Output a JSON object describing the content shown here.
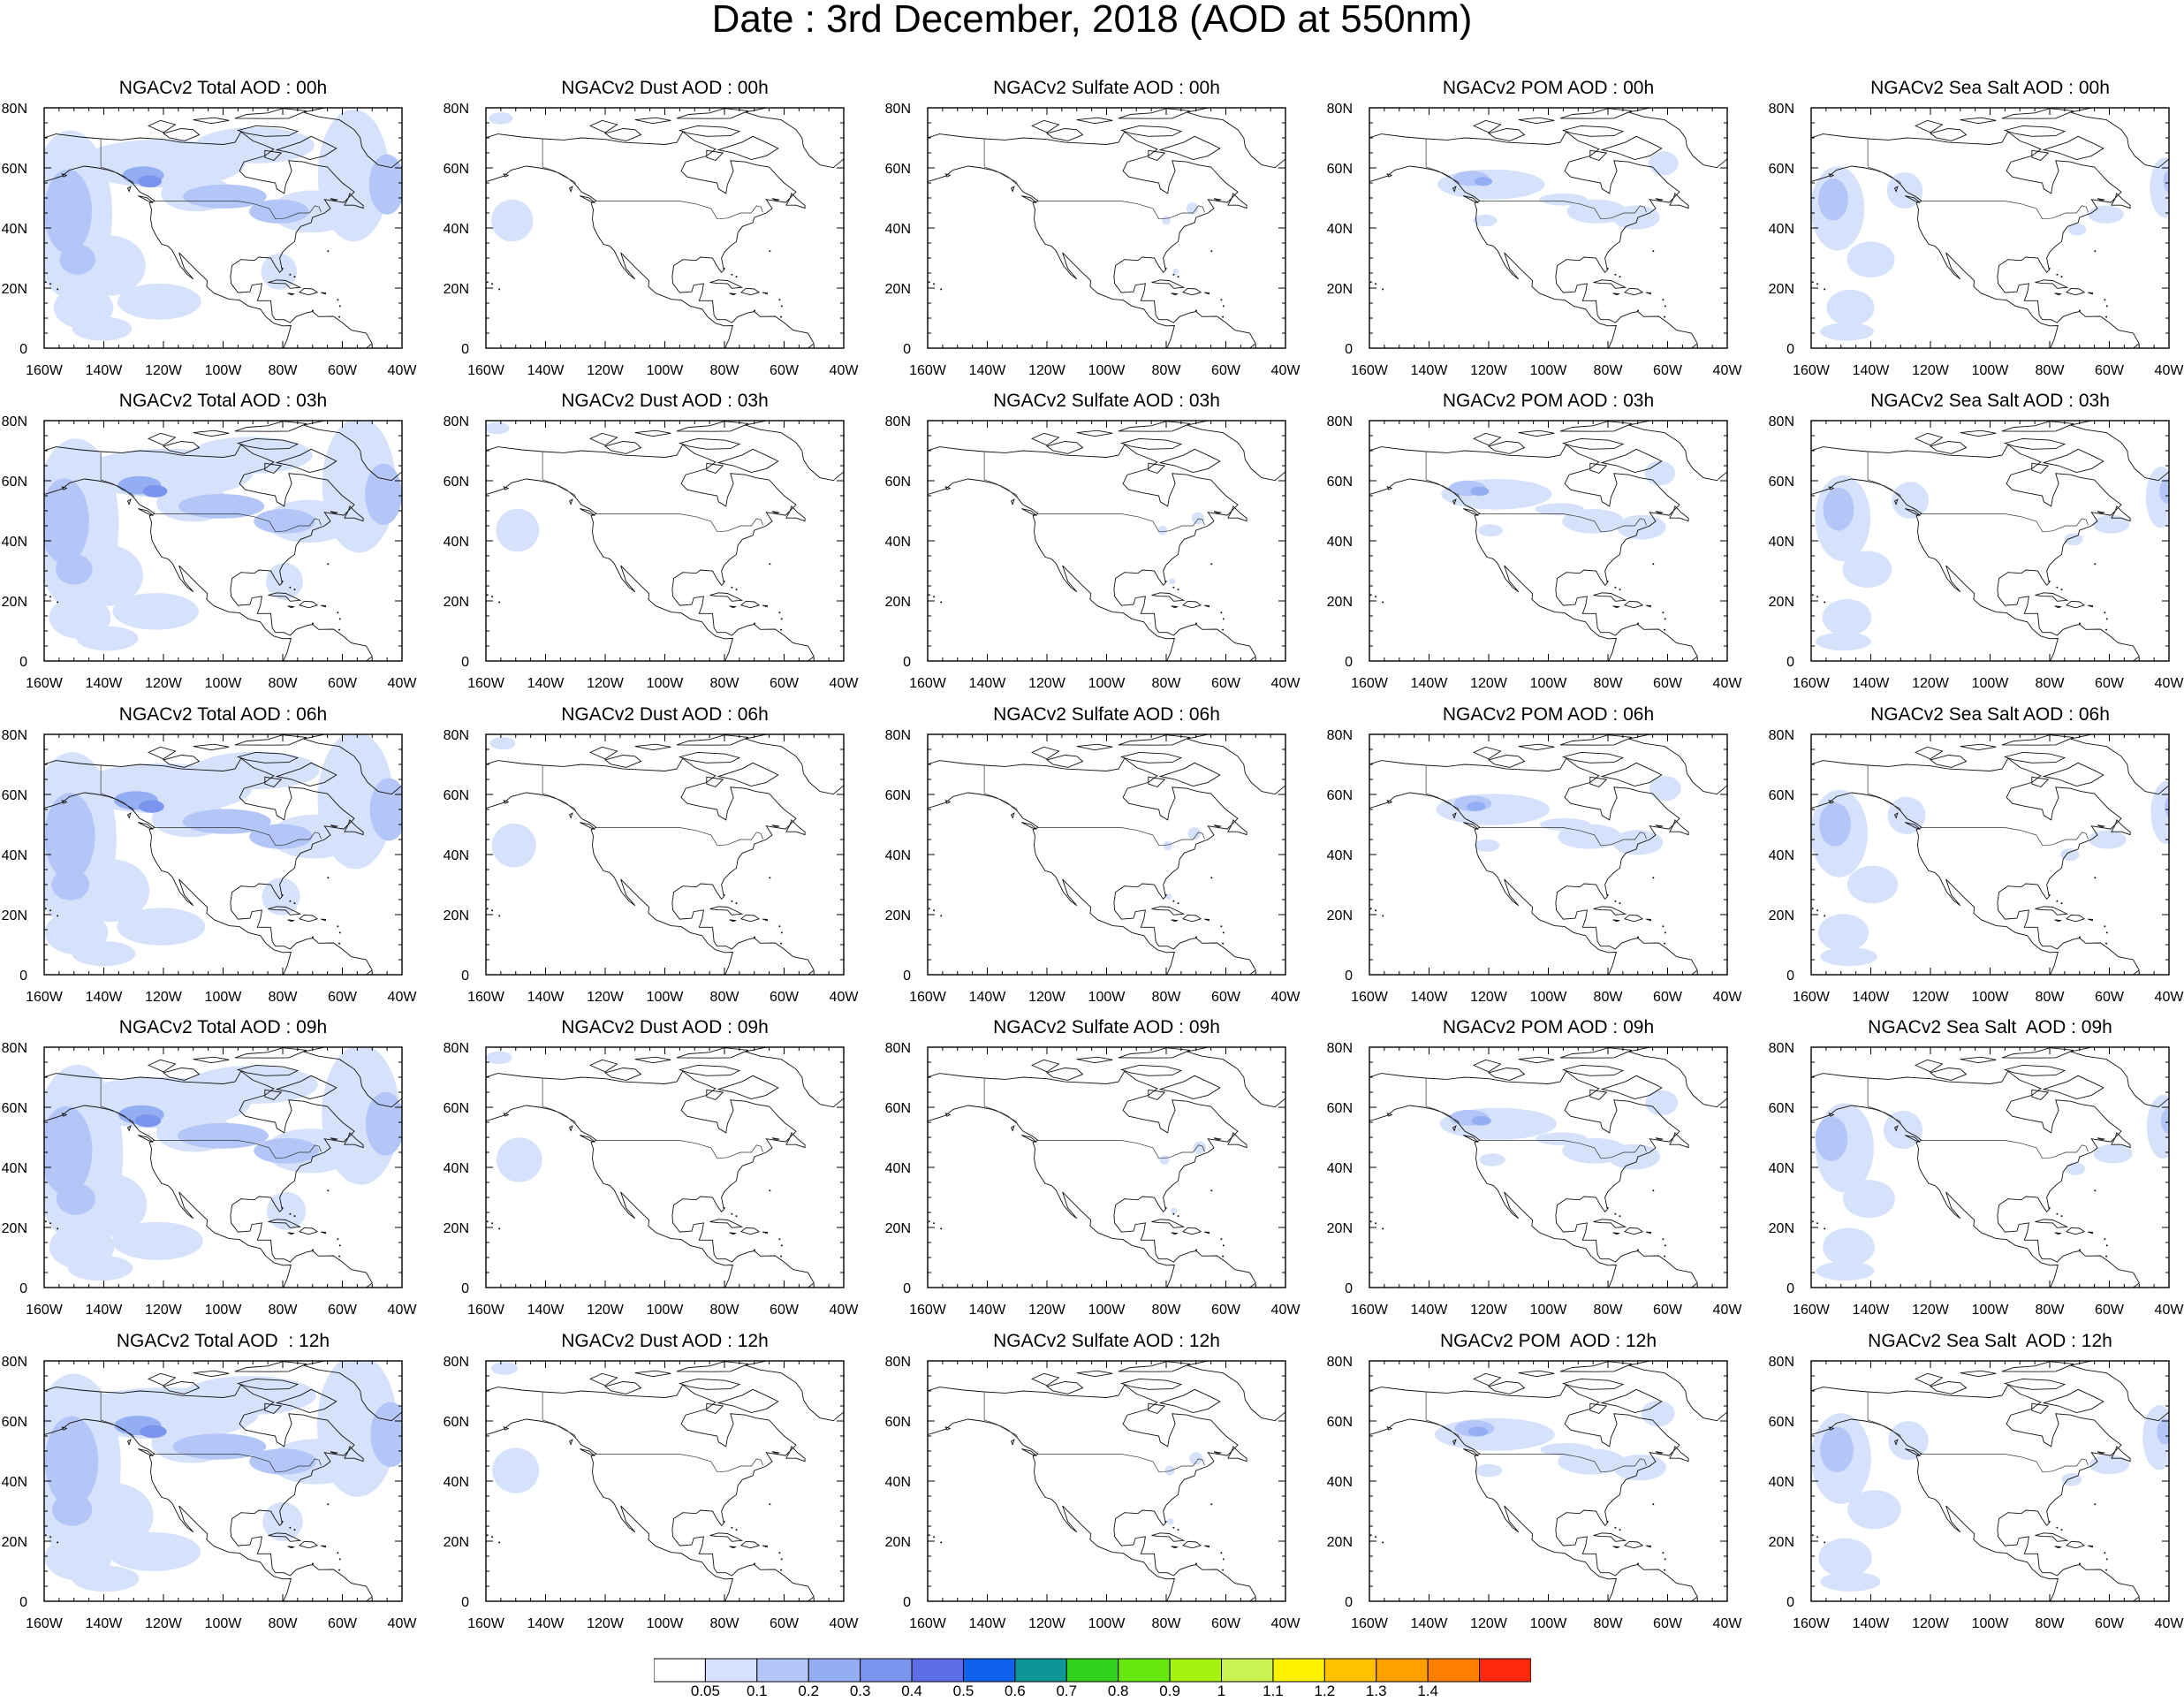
{
  "title": "Date : 3rd December, 2018 (AOD at 550nm)",
  "axes": {
    "lat_ticks": [
      "80N",
      "60N",
      "40N",
      "20N",
      "0"
    ],
    "lon_ticks": [
      "160W",
      "140W",
      "120W",
      "100W",
      "80W",
      "60W",
      "40W"
    ],
    "lon_range_deg": [
      -160,
      -40
    ],
    "lat_range_deg": [
      0,
      80
    ]
  },
  "colors": {
    "0.05": "#ffffff",
    "0.1": "#d6e1fb",
    "0.2": "#b3c6f7",
    "0.3": "#93aef3",
    "0.4": "#7b95ee",
    "0.5": "#5d6de6",
    "0.6": "#0f62ee",
    "0.7": "#0e9596",
    "0.8": "#2fd11a",
    "0.9": "#67e80e",
    "1": "#a5f30f",
    "1.1": "#c9f253",
    "1.2": "#fff200",
    "1.3": "#ffc100",
    "1.4": "#ff9f00"
  },
  "colorbar": {
    "labels": [
      "0.05",
      "0.1",
      "0.2",
      "0.3",
      "0.4",
      "0.5",
      "0.6",
      "0.7",
      "0.8",
      "0.9",
      "1",
      "1.1",
      "1.2",
      "1.3",
      "1.4"
    ],
    "colors": [
      "#ffffff",
      "#d6e1fb",
      "#b3c6f7",
      "#93aef3",
      "#7b95ee",
      "#5d6de6",
      "#0f62ee",
      "#0e9596",
      "#2fd11a",
      "#67e80e",
      "#a5f30f",
      "#c9f253",
      "#fff200",
      "#ffc100",
      "#ff9f00",
      "#ff7f00",
      "#ff2a0e"
    ]
  },
  "panels": [
    [
      {
        "title": "NGACv2 Total AOD : 00h",
        "species": "total",
        "hour": "00h"
      },
      {
        "title": "NGACv2 Dust AOD : 00h",
        "species": "dust",
        "hour": "00h"
      },
      {
        "title": "NGACv2 Sulfate AOD : 00h",
        "species": "sulfate",
        "hour": "00h"
      },
      {
        "title": "NGACv2 POM AOD : 00h",
        "species": "pom",
        "hour": "00h"
      },
      {
        "title": "NGACv2 Sea Salt AOD : 00h",
        "species": "seasalt",
        "hour": "00h"
      }
    ],
    [
      {
        "title": "NGACv2 Total AOD : 03h",
        "species": "total",
        "hour": "03h"
      },
      {
        "title": "NGACv2 Dust AOD : 03h",
        "species": "dust",
        "hour": "03h"
      },
      {
        "title": "NGACv2 Sulfate AOD : 03h",
        "species": "sulfate",
        "hour": "03h"
      },
      {
        "title": "NGACv2 POM AOD : 03h",
        "species": "pom",
        "hour": "03h"
      },
      {
        "title": "NGACv2 Sea Salt AOD : 03h",
        "species": "seasalt",
        "hour": "03h"
      }
    ],
    [
      {
        "title": "NGACv2 Total AOD : 06h",
        "species": "total",
        "hour": "06h"
      },
      {
        "title": "NGACv2 Dust AOD : 06h",
        "species": "dust",
        "hour": "06h"
      },
      {
        "title": "NGACv2 Sulfate AOD : 06h",
        "species": "sulfate",
        "hour": "06h"
      },
      {
        "title": "NGACv2 POM AOD : 06h",
        "species": "pom",
        "hour": "06h"
      },
      {
        "title": "NGACv2 Sea Salt AOD : 06h",
        "species": "seasalt",
        "hour": "06h"
      }
    ],
    [
      {
        "title": "NGACv2 Total AOD : 09h",
        "species": "total",
        "hour": "09h"
      },
      {
        "title": "NGACv2 Dust AOD : 09h",
        "species": "dust",
        "hour": "09h"
      },
      {
        "title": "NGACv2 Sulfate AOD : 09h",
        "species": "sulfate",
        "hour": "09h"
      },
      {
        "title": "NGACv2 POM AOD : 09h",
        "species": "pom",
        "hour": "09h"
      },
      {
        "title": "NGACv2 Sea Salt  AOD : 09h",
        "species": "seasalt",
        "hour": "09h"
      }
    ],
    [
      {
        "title": "NGACv2 Total AOD  : 12h",
        "species": "total",
        "hour": "12h"
      },
      {
        "title": "NGACv2 Dust AOD : 12h",
        "species": "dust",
        "hour": "12h"
      },
      {
        "title": "NGACv2 Sulfate AOD : 12h",
        "species": "sulfate",
        "hour": "12h"
      },
      {
        "title": "NGACv2 POM  AOD : 12h",
        "species": "pom",
        "hour": "12h"
      },
      {
        "title": "NGACv2 Sea Salt  AOD : 12h",
        "species": "seasalt",
        "hour": "12h"
      }
    ]
  ]
}
